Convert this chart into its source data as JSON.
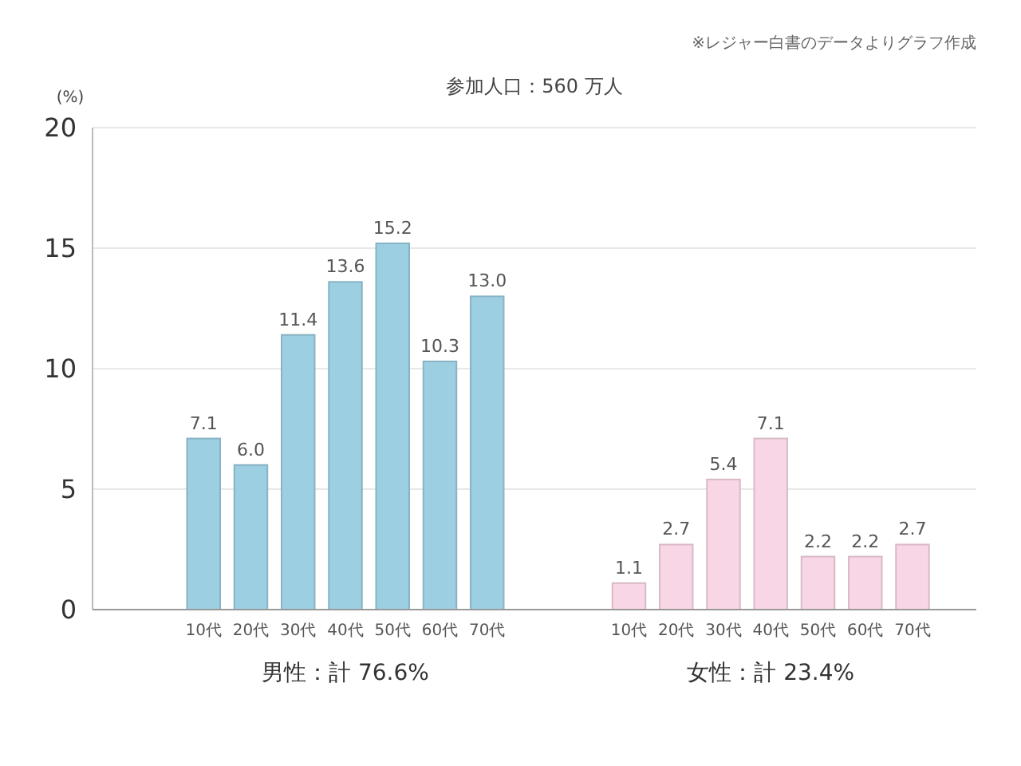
{
  "chart_data": {
    "type": "bar",
    "title": "参加人口：560 万人",
    "ylabel": "(%)",
    "categories": [
      null,
      null,
      "10代",
      "20代",
      "30代",
      "40代",
      "50代",
      "60代",
      "70代",
      null,
      null,
      "10代",
      "20代",
      "30代",
      "40代",
      "50代",
      "60代",
      "70代",
      null
    ],
    "series": [
      {
        "color": "#9dcfe2",
        "values": [
          null,
          null,
          7.1,
          6.0,
          11.4,
          13.6,
          15.2,
          10.3,
          13.0,
          null,
          null,
          null,
          null,
          null,
          null,
          null,
          null,
          null,
          null
        ],
        "value_labels": [
          null,
          null,
          "7.1",
          "6.0",
          "11.4",
          "13.6",
          "15.2",
          "10.3",
          "13.0",
          null,
          null,
          null,
          null,
          null,
          null,
          null,
          null,
          null,
          null
        ]
      },
      {
        "color": "#f9d6e6",
        "values": [
          null,
          null,
          null,
          null,
          null,
          null,
          null,
          null,
          null,
          null,
          null,
          1.1,
          2.7,
          5.4,
          7.1,
          2.2,
          2.2,
          2.7,
          null
        ],
        "value_labels": [
          null,
          null,
          null,
          null,
          null,
          null,
          null,
          null,
          null,
          null,
          null,
          "1.1",
          "2.7",
          "5.4",
          "7.1",
          "2.2",
          "2.2",
          "2.7",
          null
        ]
      }
    ],
    "ylim": [
      0,
      20
    ],
    "yticks": [
      0,
      5,
      10,
      15,
      20
    ],
    "grid": "y",
    "annotations": [
      "※レジャー白書のデータよりグラフ作成",
      "男性：計 76.6%",
      "女性：計 23.4%"
    ]
  }
}
